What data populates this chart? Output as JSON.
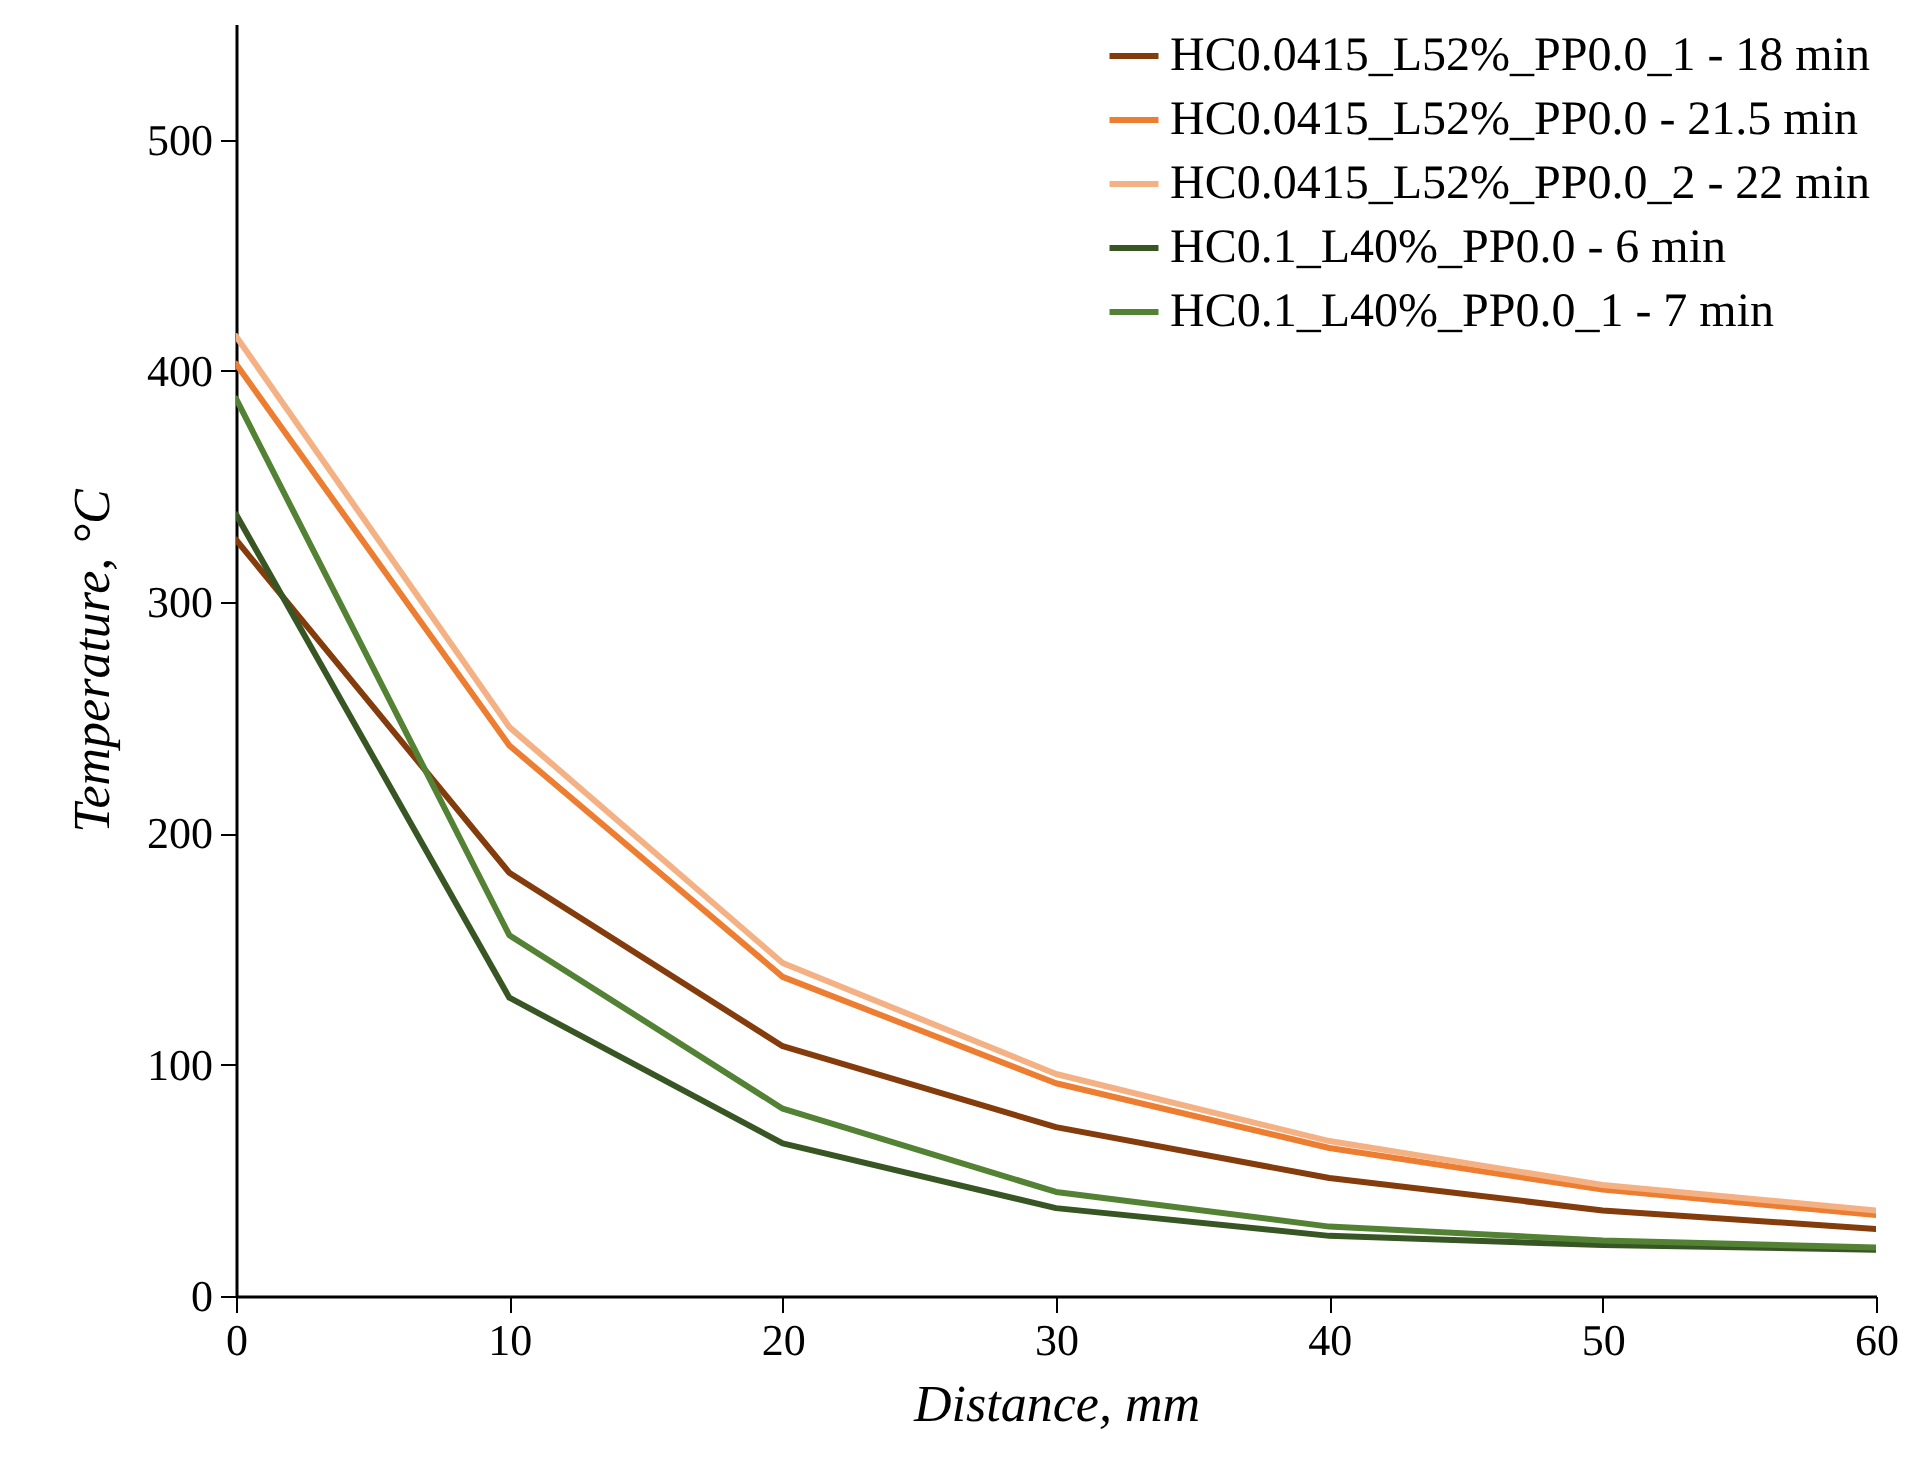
{
  "chart_data": {
    "type": "line",
    "xlabel": "Distance, mm",
    "ylabel": "Temperature, °C",
    "x": [
      0,
      10,
      20,
      30,
      40,
      50,
      60
    ],
    "xlim": [
      0,
      60
    ],
    "xticks": [
      0,
      10,
      20,
      30,
      40,
      50,
      60
    ],
    "ylim": [
      0,
      550
    ],
    "yticks": [
      0,
      100,
      200,
      300,
      400,
      500
    ],
    "grid": false,
    "legend": "top right",
    "marker": "none",
    "line_style": "solid",
    "series": [
      {
        "name": "HC0.0415_L52%_PP0.0_1 - 18 min",
        "color": "#843c0c",
        "values": [
          327,
          183,
          108,
          73,
          51,
          37,
          29
        ]
      },
      {
        "name": "HC0.0415_L52%_PP0.0 - 21.5 min",
        "color": "#ed7d31",
        "values": [
          403,
          238,
          138,
          92,
          64,
          46,
          35
        ]
      },
      {
        "name": "HC0.0415_L52%_PP0.0_2 - 22 min",
        "color": "#f4b183",
        "values": [
          415,
          246,
          144,
          96,
          67,
          48,
          37
        ]
      },
      {
        "name": "HC0.1_L40%_PP0.0 - 6 min",
        "color": "#375623",
        "values": [
          338,
          129,
          66,
          38,
          26,
          22,
          20
        ]
      },
      {
        "name": "HC0.1_L40%_PP0.0_1 - 7 min",
        "color": "#548235",
        "values": [
          388,
          156,
          81,
          45,
          30,
          24,
          21
        ]
      }
    ]
  }
}
